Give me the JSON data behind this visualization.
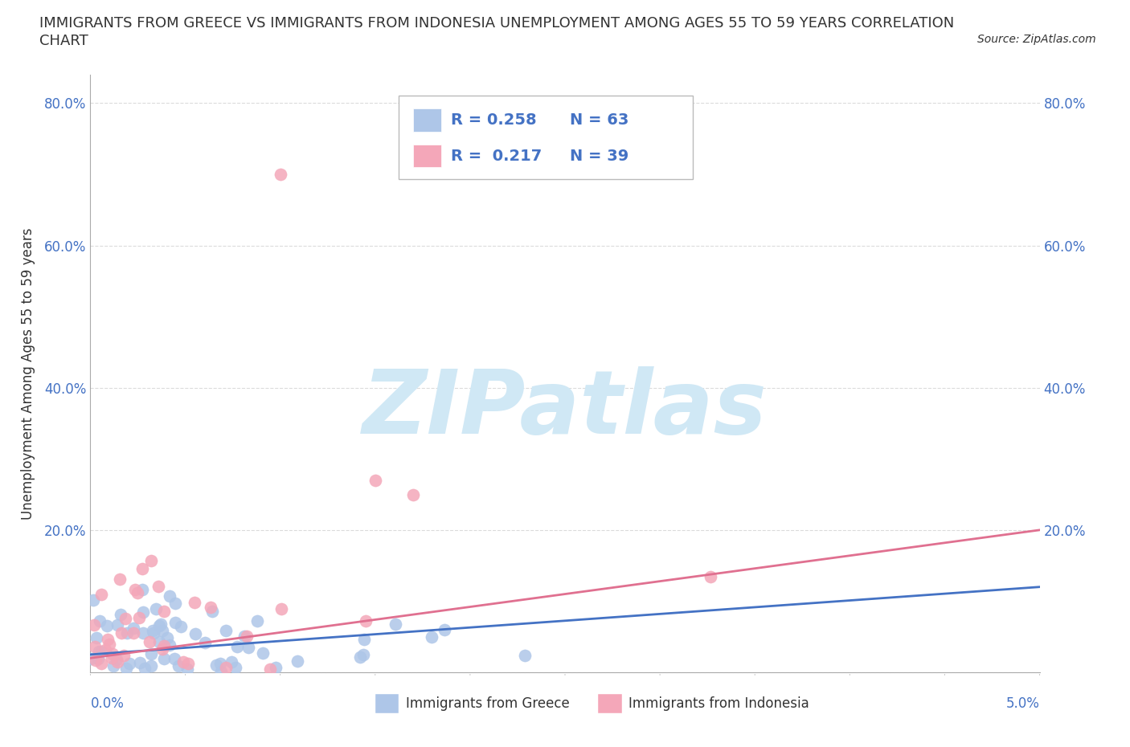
{
  "title_line1": "IMMIGRANTS FROM GREECE VS IMMIGRANTS FROM INDONESIA UNEMPLOYMENT AMONG AGES 55 TO 59 YEARS CORRELATION",
  "title_line2": "CHART",
  "source": "Source: ZipAtlas.com",
  "ylabel": "Unemployment Among Ages 55 to 59 years",
  "xlim": [
    0.0,
    0.05
  ],
  "ylim": [
    0.0,
    0.84
  ],
  "yticks": [
    0.0,
    0.2,
    0.4,
    0.6,
    0.8
  ],
  "ytick_labels_left": [
    "",
    "20.0%",
    "40.0%",
    "60.0%",
    "80.0%"
  ],
  "ytick_labels_right": [
    "",
    "20.0%",
    "40.0%",
    "60.0%",
    "80.0%"
  ],
  "xtick_label_left": "0.0%",
  "xtick_label_right": "5.0%",
  "greece_color": "#aec6e8",
  "indonesia_color": "#f4a7b9",
  "greece_line_color": "#4472c4",
  "indonesia_line_color": "#e07090",
  "greece_R": 0.258,
  "greece_N": 63,
  "indonesia_R": 0.217,
  "indonesia_N": 39,
  "watermark": "ZIPatlas",
  "watermark_color": "#d0e8f5",
  "legend_label_greece": "Immigrants from Greece",
  "legend_label_indonesia": "Immigrants from Indonesia",
  "title_fontsize": 13,
  "axis_label_color": "#4472c4",
  "text_color": "#333333",
  "grid_color": "#cccccc",
  "greece_trend_y0": 0.025,
  "greece_trend_y1": 0.12,
  "indonesia_trend_y0": 0.02,
  "indonesia_trend_y1": 0.2
}
